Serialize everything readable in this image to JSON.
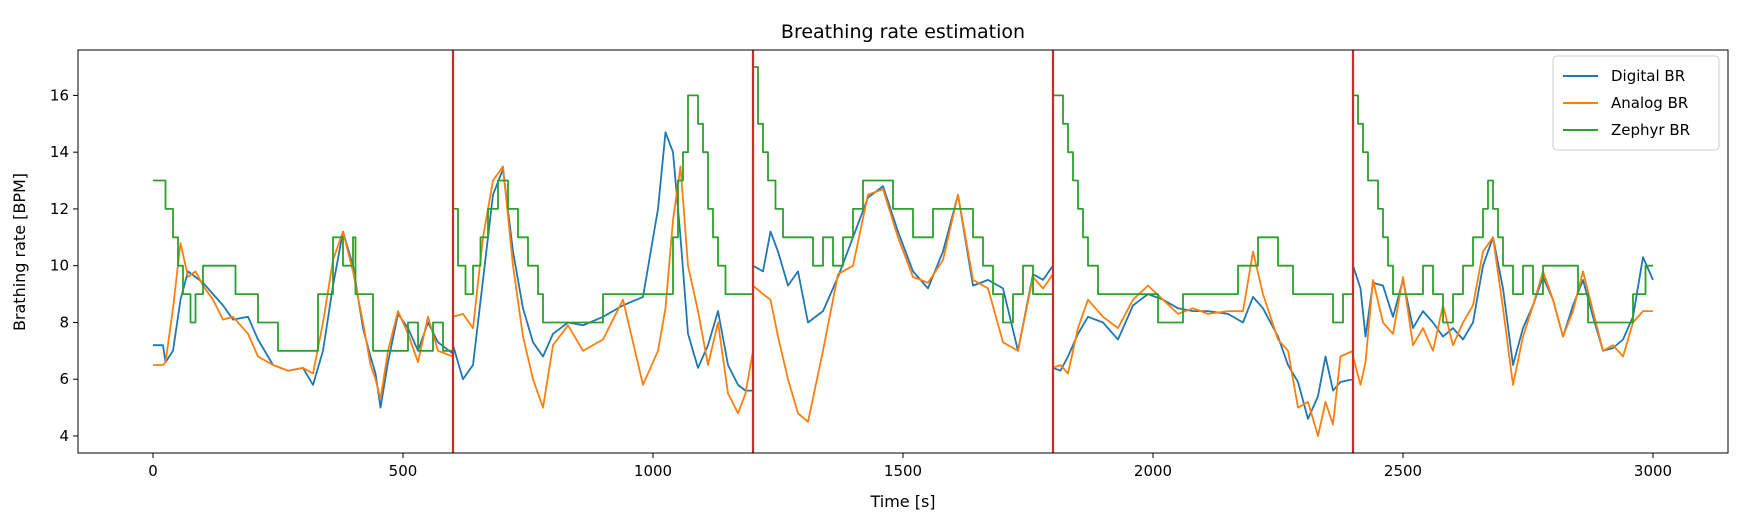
{
  "chart_data": {
    "type": "line",
    "title": "Breathing rate estimation",
    "xlabel": "Time [s]",
    "ylabel": "Brathing rate [BPM]",
    "xlim": [
      -150,
      3150
    ],
    "ylim": [
      3.4,
      17.6
    ],
    "xticks": [
      0,
      500,
      1000,
      1500,
      2000,
      2500,
      3000
    ],
    "yticks": [
      4,
      6,
      8,
      10,
      12,
      14,
      16
    ],
    "grid": false,
    "legend_position": "top-right",
    "vlines": {
      "color": "#d62728",
      "x": [
        600,
        1200,
        1800,
        2400
      ]
    },
    "series": [
      {
        "name": "Digital BR",
        "color": "#1f77b4",
        "x": [
          0,
          20,
          25,
          40,
          55,
          70,
          85,
          100,
          120,
          140,
          160,
          190,
          210,
          240,
          270,
          300,
          320,
          340,
          360,
          380,
          400,
          420,
          435,
          445,
          455,
          470,
          490,
          510,
          530,
          550,
          570,
          600,
          600,
          620,
          640,
          660,
          680,
          700,
          720,
          740,
          760,
          780,
          800,
          830,
          860,
          900,
          940,
          980,
          1010,
          1025,
          1040,
          1055,
          1070,
          1090,
          1110,
          1130,
          1150,
          1170,
          1185,
          1200,
          1200,
          1220,
          1235,
          1250,
          1270,
          1290,
          1310,
          1340,
          1370,
          1400,
          1430,
          1460,
          1490,
          1520,
          1550,
          1580,
          1610,
          1640,
          1670,
          1700,
          1730,
          1760,
          1780,
          1800,
          1800,
          1815,
          1830,
          1850,
          1870,
          1900,
          1930,
          1960,
          1990,
          2020,
          2050,
          2080,
          2110,
          2150,
          2180,
          2200,
          2220,
          2250,
          2270,
          2290,
          2310,
          2330,
          2345,
          2360,
          2375,
          2400,
          2400,
          2415,
          2425,
          2440,
          2460,
          2480,
          2500,
          2520,
          2540,
          2560,
          2580,
          2600,
          2620,
          2640,
          2660,
          2680,
          2700,
          2720,
          2740,
          2760,
          2780,
          2800,
          2820,
          2840,
          2860,
          2880,
          2900,
          2920,
          2940,
          2960,
          2980,
          3000
        ],
        "values": [
          7.2,
          7.2,
          6.6,
          7.0,
          8.8,
          9.8,
          9.6,
          9.4,
          9.0,
          8.6,
          8.1,
          8.2,
          7.4,
          6.5,
          6.3,
          6.4,
          5.8,
          7.0,
          9.3,
          11.2,
          10.0,
          7.8,
          6.8,
          6.2,
          5.0,
          6.6,
          8.3,
          7.8,
          7.0,
          8.0,
          7.3,
          6.9,
          7.2,
          6.0,
          6.5,
          9.5,
          12.5,
          13.4,
          10.5,
          8.5,
          7.3,
          6.8,
          7.6,
          8.0,
          7.9,
          8.2,
          8.6,
          8.9,
          12.0,
          14.7,
          14.0,
          11.0,
          7.6,
          6.4,
          7.2,
          8.4,
          6.5,
          5.8,
          5.6,
          5.6,
          10.0,
          9.8,
          11.2,
          10.5,
          9.3,
          9.8,
          8.0,
          8.4,
          9.6,
          11.0,
          12.4,
          12.8,
          11.2,
          9.8,
          9.2,
          10.5,
          12.5,
          9.3,
          9.5,
          9.2,
          7.0,
          9.7,
          9.5,
          10.0,
          6.4,
          6.3,
          6.8,
          7.6,
          8.2,
          8.0,
          7.4,
          8.6,
          9.0,
          8.8,
          8.5,
          8.4,
          8.4,
          8.3,
          8.0,
          8.9,
          8.5,
          7.5,
          6.5,
          5.9,
          4.6,
          5.4,
          6.8,
          5.6,
          5.9,
          6.0,
          10.0,
          9.2,
          7.5,
          9.4,
          9.3,
          8.2,
          9.5,
          7.8,
          8.4,
          8.0,
          7.5,
          7.8,
          7.4,
          8.0,
          10.0,
          11.0,
          9.2,
          6.5,
          7.8,
          8.6,
          9.6,
          8.8,
          7.5,
          8.6,
          9.5,
          8.2,
          7.0,
          7.1,
          7.4,
          8.2,
          10.3,
          9.5
        ],
        "x_1": null
      },
      {
        "name": "Analog BR",
        "color": "#ff7f0e",
        "x": [
          0,
          20,
          25,
          40,
          55,
          70,
          85,
          100,
          120,
          140,
          160,
          190,
          210,
          240,
          270,
          300,
          320,
          340,
          360,
          380,
          400,
          420,
          435,
          445,
          455,
          470,
          490,
          510,
          530,
          550,
          570,
          600,
          600,
          620,
          640,
          660,
          680,
          700,
          720,
          740,
          760,
          780,
          800,
          830,
          860,
          900,
          940,
          980,
          1010,
          1025,
          1040,
          1055,
          1070,
          1090,
          1110,
          1130,
          1150,
          1170,
          1185,
          1200,
          1200,
          1220,
          1235,
          1250,
          1270,
          1290,
          1310,
          1340,
          1370,
          1400,
          1430,
          1460,
          1490,
          1520,
          1550,
          1580,
          1610,
          1640,
          1670,
          1700,
          1730,
          1760,
          1780,
          1800,
          1800,
          1815,
          1830,
          1850,
          1870,
          1900,
          1930,
          1960,
          1990,
          2020,
          2050,
          2080,
          2110,
          2150,
          2180,
          2200,
          2220,
          2250,
          2270,
          2290,
          2310,
          2330,
          2345,
          2360,
          2375,
          2400,
          2400,
          2415,
          2425,
          2440,
          2460,
          2480,
          2500,
          2520,
          2540,
          2560,
          2580,
          2600,
          2620,
          2640,
          2660,
          2680,
          2700,
          2720,
          2740,
          2760,
          2780,
          2800,
          2820,
          2840,
          2860,
          2880,
          2900,
          2920,
          2940,
          2960,
          2980,
          3000
        ],
        "values": [
          6.5,
          6.5,
          6.6,
          8.5,
          10.8,
          9.6,
          9.8,
          9.3,
          8.8,
          8.1,
          8.2,
          7.6,
          6.8,
          6.5,
          6.3,
          6.4,
          6.2,
          8.0,
          10.2,
          11.2,
          9.8,
          8.0,
          6.5,
          6.0,
          5.3,
          7.0,
          8.4,
          7.6,
          6.6,
          8.2,
          7.0,
          6.8,
          8.2,
          8.3,
          7.8,
          11.0,
          13.0,
          13.5,
          10.0,
          7.5,
          6.0,
          5.0,
          7.2,
          7.9,
          7.0,
          7.4,
          8.8,
          5.8,
          7.0,
          8.5,
          11.6,
          13.5,
          10.0,
          8.4,
          6.5,
          8.0,
          5.5,
          4.8,
          5.5,
          7.0,
          9.3,
          9.0,
          8.8,
          7.5,
          6.0,
          4.8,
          4.5,
          7.0,
          9.7,
          10.0,
          12.5,
          12.7,
          11.0,
          9.6,
          9.4,
          10.2,
          12.5,
          9.5,
          9.2,
          7.3,
          7.0,
          9.6,
          9.2,
          9.7,
          6.4,
          6.5,
          6.2,
          7.8,
          8.8,
          8.2,
          7.8,
          8.8,
          9.3,
          8.8,
          8.3,
          8.5,
          8.3,
          8.4,
          8.4,
          10.5,
          9.0,
          7.4,
          7.0,
          5.0,
          5.2,
          4.0,
          5.2,
          4.4,
          6.8,
          7.0,
          6.8,
          5.8,
          6.6,
          9.5,
          8.0,
          7.6,
          9.6,
          7.2,
          7.8,
          7.0,
          8.6,
          7.2,
          8.0,
          8.6,
          10.5,
          11.0,
          8.5,
          5.8,
          7.5,
          8.6,
          9.8,
          8.8,
          7.5,
          8.4,
          9.8,
          8.4,
          7.0,
          7.2,
          6.8,
          8.0,
          8.4,
          8.4
        ]
      },
      {
        "name": "Zephyr BR",
        "color": "#2ca02c",
        "steps": [
          [
            0,
            13.0
          ],
          [
            25,
            12.0
          ],
          [
            40,
            11.0
          ],
          [
            50,
            10.0
          ],
          [
            60,
            9.0
          ],
          [
            75,
            8.0
          ],
          [
            85,
            9.0
          ],
          [
            100,
            10.0
          ],
          [
            150,
            10.0
          ],
          [
            165,
            9.0
          ],
          [
            200,
            9.0
          ],
          [
            210,
            8.0
          ],
          [
            250,
            7.0
          ],
          [
            330,
            9.0
          ],
          [
            360,
            11.0
          ],
          [
            380,
            10.0
          ],
          [
            400,
            11.0
          ],
          [
            405,
            9.0
          ],
          [
            440,
            7.0
          ],
          [
            490,
            7.0
          ],
          [
            510,
            8.0
          ],
          [
            530,
            7.0
          ],
          [
            560,
            8.0
          ],
          [
            580,
            7.0
          ],
          [
            600,
            7.0
          ],
          [
            600,
            12.0
          ],
          [
            610,
            10.0
          ],
          [
            625,
            9.0
          ],
          [
            640,
            10.0
          ],
          [
            655,
            11.0
          ],
          [
            670,
            12.0
          ],
          [
            690,
            13.0
          ],
          [
            710,
            12.0
          ],
          [
            730,
            11.0
          ],
          [
            750,
            10.0
          ],
          [
            770,
            9.0
          ],
          [
            780,
            8.0
          ],
          [
            870,
            8.0
          ],
          [
            900,
            9.0
          ],
          [
            1030,
            9.0
          ],
          [
            1040,
            11.0
          ],
          [
            1050,
            13.0
          ],
          [
            1060,
            14.0
          ],
          [
            1070,
            16.0
          ],
          [
            1090,
            15.0
          ],
          [
            1100,
            14.0
          ],
          [
            1110,
            12.0
          ],
          [
            1120,
            11.0
          ],
          [
            1130,
            10.0
          ],
          [
            1145,
            9.0
          ],
          [
            1200,
            9.0
          ],
          [
            1200,
            17.0
          ],
          [
            1210,
            15.0
          ],
          [
            1220,
            14.0
          ],
          [
            1230,
            13.0
          ],
          [
            1245,
            12.0
          ],
          [
            1260,
            11.0
          ],
          [
            1300,
            11.0
          ],
          [
            1320,
            10.0
          ],
          [
            1340,
            11.0
          ],
          [
            1360,
            10.0
          ],
          [
            1380,
            11.0
          ],
          [
            1400,
            12.0
          ],
          [
            1420,
            13.0
          ],
          [
            1460,
            13.0
          ],
          [
            1480,
            12.0
          ],
          [
            1520,
            11.0
          ],
          [
            1560,
            12.0
          ],
          [
            1620,
            12.0
          ],
          [
            1640,
            11.0
          ],
          [
            1660,
            10.0
          ],
          [
            1680,
            9.0
          ],
          [
            1700,
            8.0
          ],
          [
            1720,
            9.0
          ],
          [
            1740,
            10.0
          ],
          [
            1760,
            9.0
          ],
          [
            1800,
            9.0
          ],
          [
            1800,
            16.0
          ],
          [
            1820,
            15.0
          ],
          [
            1830,
            14.0
          ],
          [
            1840,
            13.0
          ],
          [
            1850,
            12.0
          ],
          [
            1860,
            11.0
          ],
          [
            1870,
            10.0
          ],
          [
            1890,
            9.0
          ],
          [
            2000,
            9.0
          ],
          [
            2010,
            8.0
          ],
          [
            2050,
            8.0
          ],
          [
            2060,
            9.0
          ],
          [
            2150,
            9.0
          ],
          [
            2170,
            10.0
          ],
          [
            2200,
            10.0
          ],
          [
            2210,
            11.0
          ],
          [
            2240,
            11.0
          ],
          [
            2250,
            10.0
          ],
          [
            2280,
            9.0
          ],
          [
            2350,
            9.0
          ],
          [
            2360,
            8.0
          ],
          [
            2380,
            9.0
          ],
          [
            2400,
            9.0
          ],
          [
            2400,
            16.0
          ],
          [
            2410,
            15.0
          ],
          [
            2420,
            14.0
          ],
          [
            2430,
            13.0
          ],
          [
            2450,
            12.0
          ],
          [
            2460,
            11.0
          ],
          [
            2470,
            10.0
          ],
          [
            2480,
            9.0
          ],
          [
            2530,
            9.0
          ],
          [
            2540,
            10.0
          ],
          [
            2560,
            9.0
          ],
          [
            2580,
            8.0
          ],
          [
            2600,
            9.0
          ],
          [
            2620,
            10.0
          ],
          [
            2640,
            11.0
          ],
          [
            2660,
            12.0
          ],
          [
            2670,
            13.0
          ],
          [
            2680,
            12.0
          ],
          [
            2690,
            11.0
          ],
          [
            2700,
            10.0
          ],
          [
            2720,
            9.0
          ],
          [
            2740,
            10.0
          ],
          [
            2760,
            9.0
          ],
          [
            2780,
            10.0
          ],
          [
            2830,
            10.0
          ],
          [
            2850,
            9.0
          ],
          [
            2870,
            8.0
          ],
          [
            2940,
            8.0
          ],
          [
            2960,
            9.0
          ],
          [
            2985,
            10.0
          ],
          [
            3000,
            10.0
          ]
        ]
      }
    ]
  }
}
